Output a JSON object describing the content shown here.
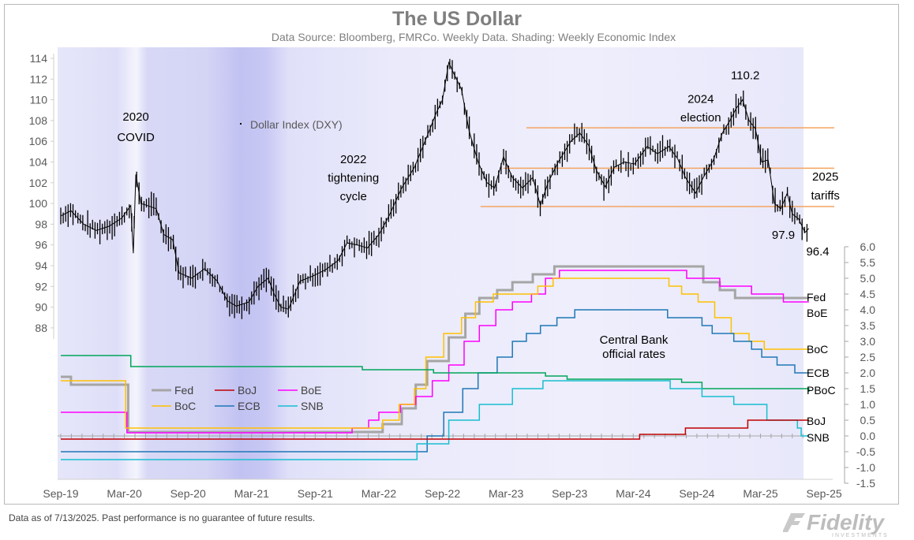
{
  "chart_data": {
    "type": "line",
    "title": "The US Dollar",
    "subtitle": "Data Source: Bloomberg, FMRCo. Weekly Data.  Shading: Weekly Economic Index",
    "x_ticks": [
      "Sep-19",
      "Mar-20",
      "Sep-20",
      "Mar-21",
      "Sep-21",
      "Mar-22",
      "Sep-22",
      "Mar-23",
      "Sep-23",
      "Mar-24",
      "Sep-24",
      "Mar-25",
      "Sep-25"
    ],
    "x_range": [
      2019.67,
      2025.75
    ],
    "left_axis": {
      "range": [
        88,
        114
      ],
      "ticks": [
        88,
        90,
        92,
        94,
        96,
        98,
        100,
        102,
        104,
        106,
        108,
        110,
        112,
        114
      ]
    },
    "right_axis": {
      "range": [
        -1.5,
        6.0
      ],
      "ticks": [
        "6.0",
        "5.5",
        "5.0",
        "4.5",
        "4.0",
        "3.5",
        "3.0",
        "2.5",
        "2.0",
        "1.5",
        "1.0",
        "0.5",
        "0.0",
        "-0.5",
        "-1.0",
        "-1.5"
      ]
    },
    "dxy": {
      "name": "Dollar Index (DXY)",
      "points": [
        [
          2019.67,
          98.8
        ],
        [
          2019.75,
          99.3
        ],
        [
          2019.85,
          98.0
        ],
        [
          2019.95,
          97.4
        ],
        [
          2020.05,
          97.8
        ],
        [
          2020.15,
          98.6
        ],
        [
          2020.22,
          99.8
        ],
        [
          2020.24,
          95.2
        ],
        [
          2020.26,
          102.8
        ],
        [
          2020.3,
          100.0
        ],
        [
          2020.35,
          99.8
        ],
        [
          2020.42,
          99.5
        ],
        [
          2020.48,
          97.0
        ],
        [
          2020.55,
          96.5
        ],
        [
          2020.6,
          93.3
        ],
        [
          2020.7,
          92.8
        ],
        [
          2020.8,
          93.7
        ],
        [
          2020.9,
          92.5
        ],
        [
          2020.98,
          90.6
        ],
        [
          2021.05,
          90.1
        ],
        [
          2021.15,
          90.5
        ],
        [
          2021.22,
          92.0
        ],
        [
          2021.3,
          92.8
        ],
        [
          2021.35,
          91.2
        ],
        [
          2021.4,
          90.0
        ],
        [
          2021.46,
          89.8
        ],
        [
          2021.55,
          92.5
        ],
        [
          2021.65,
          93.0
        ],
        [
          2021.75,
          93.6
        ],
        [
          2021.85,
          94.5
        ],
        [
          2021.92,
          96.2
        ],
        [
          2022.0,
          96.0
        ],
        [
          2022.08,
          95.7
        ],
        [
          2022.17,
          97.0
        ],
        [
          2022.25,
          98.8
        ],
        [
          2022.35,
          101.5
        ],
        [
          2022.45,
          103.5
        ],
        [
          2022.55,
          106.5
        ],
        [
          2022.62,
          108.7
        ],
        [
          2022.67,
          110.0
        ],
        [
          2022.72,
          113.6
        ],
        [
          2022.76,
          112.5
        ],
        [
          2022.82,
          111.0
        ],
        [
          2022.88,
          107.0
        ],
        [
          2022.95,
          104.0
        ],
        [
          2023.02,
          102.0
        ],
        [
          2023.08,
          101.5
        ],
        [
          2023.15,
          104.5
        ],
        [
          2023.22,
          102.5
        ],
        [
          2023.3,
          101.5
        ],
        [
          2023.38,
          102.5
        ],
        [
          2023.44,
          99.8
        ],
        [
          2023.5,
          102.0
        ],
        [
          2023.58,
          104.0
        ],
        [
          2023.68,
          106.0
        ],
        [
          2023.75,
          106.8
        ],
        [
          2023.82,
          105.6
        ],
        [
          2023.88,
          103.2
        ],
        [
          2023.95,
          101.6
        ],
        [
          2024.02,
          103.5
        ],
        [
          2024.1,
          104.0
        ],
        [
          2024.18,
          103.8
        ],
        [
          2024.28,
          105.5
        ],
        [
          2024.36,
          104.8
        ],
        [
          2024.45,
          105.5
        ],
        [
          2024.52,
          104.3
        ],
        [
          2024.58,
          102.5
        ],
        [
          2024.66,
          101.0
        ],
        [
          2024.72,
          102.5
        ],
        [
          2024.8,
          104.2
        ],
        [
          2024.87,
          106.8
        ],
        [
          2024.93,
          108.0
        ],
        [
          2024.98,
          109.2
        ],
        [
          2025.03,
          110.0
        ],
        [
          2025.08,
          108.0
        ],
        [
          2025.13,
          107.2
        ],
        [
          2025.18,
          104.0
        ],
        [
          2025.23,
          104.2
        ],
        [
          2025.28,
          100.0
        ],
        [
          2025.33,
          99.5
        ],
        [
          2025.38,
          101.0
        ],
        [
          2025.42,
          99.0
        ],
        [
          2025.47,
          98.5
        ],
        [
          2025.52,
          97.2
        ],
        [
          2025.55,
          97.6
        ]
      ]
    },
    "range_lines": [
      {
        "y": 107.3,
        "x_start": 2023.33,
        "x_end": 2025.75
      },
      {
        "y": 103.4,
        "x_start": 2023.15,
        "x_end": 2025.75
      },
      {
        "y": 99.7,
        "x_start": 2022.97,
        "x_end": 2025.75
      }
    ],
    "rate_series": [
      {
        "name": "Fed",
        "color": "#a5a5a5",
        "width": 3,
        "end_label": "Fed",
        "end_label_y": 4.4,
        "points": [
          [
            2019.67,
            1.875
          ],
          [
            2019.75,
            1.625
          ],
          [
            2019.83,
            1.625
          ],
          [
            2020.17,
            1.625
          ],
          [
            2020.2,
            0.125
          ],
          [
            2022.18,
            0.125
          ],
          [
            2022.2,
            0.375
          ],
          [
            2022.35,
            0.875
          ],
          [
            2022.46,
            1.625
          ],
          [
            2022.55,
            2.375
          ],
          [
            2022.72,
            3.125
          ],
          [
            2022.85,
            3.875
          ],
          [
            2022.96,
            4.375
          ],
          [
            2023.1,
            4.625
          ],
          [
            2023.22,
            4.875
          ],
          [
            2023.38,
            5.125
          ],
          [
            2023.55,
            5.375
          ],
          [
            2024.71,
            5.375
          ],
          [
            2024.72,
            4.875
          ],
          [
            2024.85,
            4.625
          ],
          [
            2024.97,
            4.375
          ],
          [
            2025.55,
            4.375
          ]
        ]
      },
      {
        "name": "BoE",
        "color": "#ff00ff",
        "width": 1.5,
        "end_label": "BoE",
        "end_label_y": 3.9,
        "points": [
          [
            2019.67,
            0.75
          ],
          [
            2020.17,
            0.75
          ],
          [
            2020.19,
            0.1
          ],
          [
            2021.95,
            0.1
          ],
          [
            2021.96,
            0.25
          ],
          [
            2022.09,
            0.5
          ],
          [
            2022.17,
            0.75
          ],
          [
            2022.34,
            1.0
          ],
          [
            2022.46,
            1.25
          ],
          [
            2022.59,
            1.75
          ],
          [
            2022.72,
            2.25
          ],
          [
            2022.84,
            3.0
          ],
          [
            2022.96,
            3.5
          ],
          [
            2023.09,
            4.0
          ],
          [
            2023.22,
            4.25
          ],
          [
            2023.37,
            4.5
          ],
          [
            2023.48,
            5.0
          ],
          [
            2023.59,
            5.25
          ],
          [
            2024.58,
            5.25
          ],
          [
            2024.59,
            5.0
          ],
          [
            2024.85,
            4.75
          ],
          [
            2025.1,
            4.5
          ],
          [
            2025.35,
            4.25
          ],
          [
            2025.55,
            4.25
          ]
        ]
      },
      {
        "name": "BoC",
        "color": "#ffc000",
        "width": 1.5,
        "end_label": "BoC",
        "end_label_y": 2.75,
        "points": [
          [
            2019.67,
            1.75
          ],
          [
            2020.17,
            1.75
          ],
          [
            2020.18,
            0.25
          ],
          [
            2022.17,
            0.25
          ],
          [
            2022.2,
            0.5
          ],
          [
            2022.33,
            1.0
          ],
          [
            2022.45,
            1.5
          ],
          [
            2022.54,
            2.5
          ],
          [
            2022.68,
            3.25
          ],
          [
            2022.82,
            3.75
          ],
          [
            2022.93,
            4.25
          ],
          [
            2023.07,
            4.5
          ],
          [
            2023.42,
            4.75
          ],
          [
            2023.54,
            5.0
          ],
          [
            2024.43,
            5.0
          ],
          [
            2024.45,
            4.75
          ],
          [
            2024.55,
            4.5
          ],
          [
            2024.68,
            4.25
          ],
          [
            2024.81,
            3.75
          ],
          [
            2024.94,
            3.25
          ],
          [
            2025.08,
            3.0
          ],
          [
            2025.2,
            2.75
          ],
          [
            2025.55,
            2.75
          ]
        ]
      },
      {
        "name": "ECB",
        "color": "#1f77b4",
        "width": 1.5,
        "end_label": "ECB",
        "end_label_y": 2.0,
        "points": [
          [
            2019.67,
            -0.5
          ],
          [
            2022.54,
            -0.5
          ],
          [
            2022.55,
            0.0
          ],
          [
            2022.68,
            0.75
          ],
          [
            2022.83,
            1.5
          ],
          [
            2022.95,
            2.0
          ],
          [
            2023.1,
            2.5
          ],
          [
            2023.22,
            3.0
          ],
          [
            2023.33,
            3.25
          ],
          [
            2023.44,
            3.5
          ],
          [
            2023.57,
            3.75
          ],
          [
            2023.71,
            4.0
          ],
          [
            2024.43,
            4.0
          ],
          [
            2024.44,
            3.75
          ],
          [
            2024.71,
            3.5
          ],
          [
            2024.79,
            3.25
          ],
          [
            2024.96,
            3.0
          ],
          [
            2025.1,
            2.75
          ],
          [
            2025.18,
            2.5
          ],
          [
            2025.3,
            2.25
          ],
          [
            2025.44,
            2.0
          ],
          [
            2025.55,
            2.0
          ]
        ]
      },
      {
        "name": "PBoC",
        "color": "#00a65a",
        "width": 1.5,
        "end_label": "PBoC",
        "end_label_y": 1.45,
        "points": [
          [
            2019.67,
            2.55
          ],
          [
            2020.2,
            2.55
          ],
          [
            2020.22,
            2.2
          ],
          [
            2021.8,
            2.2
          ],
          [
            2022.04,
            2.1
          ],
          [
            2022.6,
            2.0
          ],
          [
            2023.48,
            1.9
          ],
          [
            2023.65,
            1.8
          ],
          [
            2024.42,
            1.8
          ],
          [
            2024.55,
            1.7
          ],
          [
            2024.71,
            1.5
          ],
          [
            2025.42,
            1.5
          ],
          [
            2025.55,
            1.4
          ]
        ]
      },
      {
        "name": "SNB",
        "color": "#17becf",
        "width": 1.5,
        "end_label": "SNB",
        "end_label_y": -0.05,
        "points": [
          [
            2019.67,
            -0.75
          ],
          [
            2022.46,
            -0.75
          ],
          [
            2022.47,
            -0.25
          ],
          [
            2022.72,
            0.5
          ],
          [
            2022.96,
            1.0
          ],
          [
            2023.22,
            1.5
          ],
          [
            2023.46,
            1.75
          ],
          [
            2024.22,
            1.75
          ],
          [
            2024.46,
            1.5
          ],
          [
            2024.71,
            1.25
          ],
          [
            2024.96,
            1.0
          ],
          [
            2025.22,
            0.5
          ],
          [
            2025.46,
            0.25
          ],
          [
            2025.49,
            0.0
          ],
          [
            2025.55,
            0.0
          ]
        ]
      },
      {
        "name": "BoJ",
        "color": "#c00000",
        "width": 1.5,
        "end_label": "BoJ",
        "end_label_y": 0.48,
        "points": [
          [
            2019.67,
            -0.1
          ],
          [
            2024.22,
            -0.1
          ],
          [
            2024.22,
            0.05
          ],
          [
            2024.58,
            0.25
          ],
          [
            2025.06,
            0.25
          ],
          [
            2025.07,
            0.5
          ],
          [
            2025.55,
            0.5
          ]
        ]
      }
    ],
    "annotations": [
      {
        "id": "covid-line1",
        "text": "2020",
        "x": 2020.26,
        "y": 108.0
      },
      {
        "id": "covid-line2",
        "text": "COVID",
        "x": 2020.26,
        "y": 106.0
      },
      {
        "id": "tight-line1",
        "text": "2022",
        "x": 2021.97,
        "y": 103.9
      },
      {
        "id": "tight-line2",
        "text": "tightening",
        "x": 2021.97,
        "y": 102.1
      },
      {
        "id": "tight-line3",
        "text": "cycle",
        "x": 2021.97,
        "y": 100.3
      },
      {
        "id": "elect-line1",
        "text": "2024",
        "x": 2024.7,
        "y": 109.7
      },
      {
        "id": "elect-line2",
        "text": "election",
        "x": 2024.7,
        "y": 107.9
      },
      {
        "id": "peak",
        "text": "110.2",
        "x": 2025.05,
        "y": 112.0
      },
      {
        "id": "tariff-line1",
        "text": "2025",
        "x": 2025.68,
        "y": 102.2
      },
      {
        "id": "tariff-line2",
        "text": "tariffs",
        "x": 2025.68,
        "y": 100.4
      },
      {
        "id": "low1",
        "text": "97.9",
        "x": 2025.35,
        "y": 96.6
      },
      {
        "id": "low2",
        "text": "96.4",
        "x": 2025.62,
        "y": 95.0
      }
    ],
    "cb_label": [
      "Central Bank",
      "official rates"
    ],
    "legend": [
      {
        "name": "Fed",
        "color": "#a5a5a5",
        "width": 3
      },
      {
        "name": "BoJ",
        "color": "#c00000",
        "width": 1.5
      },
      {
        "name": "BoE",
        "color": "#ff00ff",
        "width": 1.5
      },
      {
        "name": "BoC",
        "color": "#ffc000",
        "width": 1.5
      },
      {
        "name": "ECB",
        "color": "#1f77b4",
        "width": 1.5
      },
      {
        "name": "SNB",
        "color": "#17becf",
        "width": 1.5
      }
    ],
    "colors": {
      "dxy": "#000000",
      "range_line": "#f4a460",
      "shading": "#c8c8f5",
      "axis": "#808080",
      "text": "#000000"
    }
  },
  "footer": "Data as of 7/13/2025. Past performance is no guarantee of future results.",
  "logo": {
    "brand": "Fidelity",
    "sub": "INVESTMENTS"
  }
}
